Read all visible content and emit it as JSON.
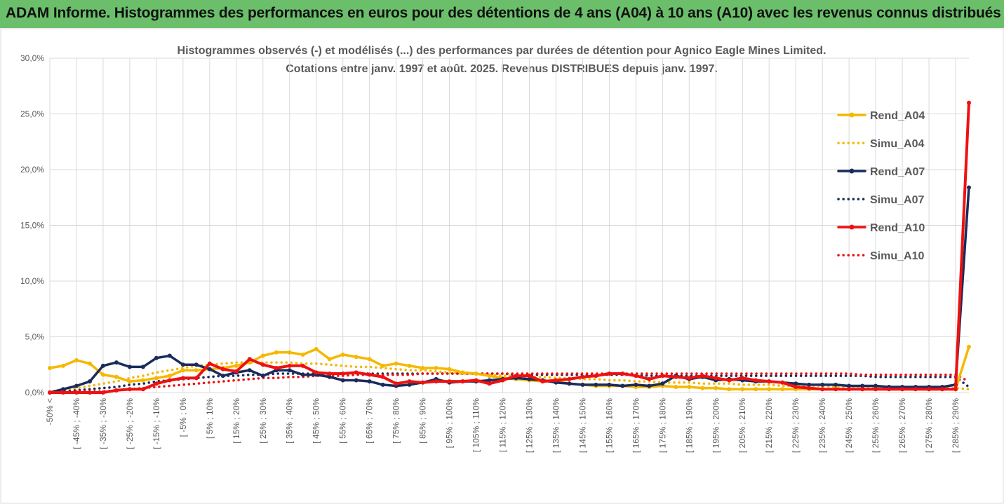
{
  "header": {
    "title": "ADAM Informe. Histogrammes des performances en euros pour des détentions de 4 ans (A04) à 10 ans (A10) avec les revenus connus distribués"
  },
  "chart_data": {
    "type": "line",
    "title_line1": "Histogrammes observés (-) et modélisés (...) des performances par durées de détention pour Agnico Eagle Mines Limited.",
    "title_line2": "Cotations entre janv. 1997 et août. 2025. Revenus DISTRIBUES depuis janv. 1997.",
    "y_ticks": [
      "0,0%",
      "5,0%",
      "10,0%",
      "15,0%",
      "20,0%",
      "25,0%",
      "30,0%"
    ],
    "ylim": [
      0,
      30
    ],
    "x_tick_labels": [
      "-50% <",
      "[ -45% ; -40%",
      "[ -35% ; -30%",
      "[ -25% ; -20%",
      "[ -15% ; -10%",
      "[ -5% ; 0%",
      "[ 5% ; 10%",
      "[ 15% ; 20%",
      "[ 25% ; 30%",
      "[ 35% ; 40%",
      "[ 45% ; 50%",
      "[ 55% ; 60%",
      "[ 65% ; 70%",
      "[ 75% ; 80%",
      "[ 85% ; 90%",
      "[ 95% ; 100%",
      "[ 105% ; 110%",
      "[ 115% ; 120%",
      "[ 125% ; 130%",
      "[ 135% ; 140%",
      "[ 145% ; 150%",
      "[ 155% ; 160%",
      "[ 165% ; 170%",
      "[ 175% ; 180%",
      "[ 185% ; 190%",
      "[ 195% ; 200%",
      "[ 205% ; 210%",
      "[ 215% ; 220%",
      "[ 225% ; 230%",
      "[ 235% ; 240%",
      "[ 245% ; 250%",
      "[ 255% ; 260%",
      "[ 265% ; 270%",
      "[ 275% ; 280%",
      "[ 285% ; 290%"
    ],
    "n_points": 70,
    "grid": true,
    "legend_position": "right",
    "series": [
      {
        "name": "Rend_A04",
        "style": "solid",
        "color": "#f5b800",
        "values": [
          2.2,
          2.4,
          2.9,
          2.6,
          1.6,
          1.4,
          1.0,
          1.1,
          1.3,
          1.5,
          2.0,
          2.0,
          2.1,
          2.2,
          2.4,
          2.7,
          3.3,
          3.6,
          3.6,
          3.4,
          3.9,
          3.0,
          3.4,
          3.2,
          3.0,
          2.4,
          2.6,
          2.4,
          2.2,
          2.2,
          2.1,
          1.8,
          1.7,
          1.5,
          1.3,
          1.2,
          1.1,
          1.0,
          1.0,
          0.8,
          0.7,
          0.6,
          0.6,
          0.6,
          0.5,
          0.5,
          0.6,
          0.5,
          0.5,
          0.4,
          0.4,
          0.3,
          0.3,
          0.3,
          0.3,
          0.3,
          0.3,
          0.3,
          0.3,
          0.3,
          0.3,
          0.3,
          0.3,
          0.3,
          0.3,
          0.3,
          0.3,
          0.3,
          0.3,
          4.1
        ]
      },
      {
        "name": "Simu_A04",
        "style": "dotted",
        "color": "#f5b800",
        "values": [
          0.1,
          0.2,
          0.4,
          0.6,
          0.8,
          1.0,
          1.3,
          1.5,
          1.8,
          2.0,
          2.2,
          2.4,
          2.5,
          2.6,
          2.7,
          2.7,
          2.7,
          2.7,
          2.7,
          2.6,
          2.6,
          2.5,
          2.4,
          2.3,
          2.3,
          2.2,
          2.1,
          2.0,
          2.0,
          1.9,
          1.8,
          1.7,
          1.7,
          1.6,
          1.5,
          1.5,
          1.4,
          1.4,
          1.3,
          1.3,
          1.2,
          1.2,
          1.1,
          1.1,
          1.0,
          1.0,
          0.9,
          0.9,
          0.9,
          0.8,
          0.8,
          0.8,
          0.7,
          0.7,
          0.7,
          0.6,
          0.6,
          0.6,
          0.6,
          0.5,
          0.5,
          0.5,
          0.5,
          0.5,
          0.4,
          0.4,
          0.4,
          0.4,
          0.4,
          0.3
        ]
      },
      {
        "name": "Rend_A07",
        "style": "solid",
        "color": "#1a2b5c",
        "values": [
          0.0,
          0.3,
          0.6,
          1.0,
          2.4,
          2.7,
          2.3,
          2.3,
          3.1,
          3.3,
          2.5,
          2.5,
          2.1,
          1.5,
          1.8,
          2.0,
          1.5,
          2.0,
          2.0,
          1.6,
          1.6,
          1.4,
          1.1,
          1.1,
          1.0,
          0.7,
          0.6,
          0.7,
          0.9,
          1.2,
          0.9,
          1.0,
          1.0,
          1.1,
          1.2,
          1.3,
          1.2,
          1.1,
          0.9,
          0.8,
          0.7,
          0.7,
          0.7,
          0.6,
          0.7,
          0.6,
          0.8,
          1.5,
          1.2,
          1.4,
          1.1,
          1.2,
          1.1,
          1.0,
          1.0,
          0.9,
          0.8,
          0.7,
          0.7,
          0.7,
          0.6,
          0.6,
          0.6,
          0.5,
          0.5,
          0.5,
          0.5,
          0.5,
          0.7,
          18.4
        ]
      },
      {
        "name": "Simu_A07",
        "style": "dotted",
        "color": "#1a2b5c",
        "values": [
          0.0,
          0.1,
          0.2,
          0.3,
          0.4,
          0.5,
          0.7,
          0.8,
          1.0,
          1.1,
          1.2,
          1.3,
          1.4,
          1.5,
          1.5,
          1.6,
          1.6,
          1.7,
          1.7,
          1.7,
          1.7,
          1.7,
          1.7,
          1.7,
          1.7,
          1.7,
          1.7,
          1.7,
          1.7,
          1.7,
          1.7,
          1.7,
          1.7,
          1.7,
          1.7,
          1.6,
          1.6,
          1.6,
          1.6,
          1.6,
          1.6,
          1.6,
          1.6,
          1.6,
          1.6,
          1.5,
          1.5,
          1.5,
          1.5,
          1.5,
          1.5,
          1.5,
          1.5,
          1.5,
          1.5,
          1.5,
          1.5,
          1.5,
          1.5,
          1.5,
          1.5,
          1.5,
          1.4,
          1.4,
          1.4,
          1.4,
          1.4,
          1.4,
          1.4,
          0.5
        ]
      },
      {
        "name": "Rend_A10",
        "style": "solid",
        "color": "#ee1111",
        "values": [
          0.0,
          0.0,
          0.0,
          0.0,
          0.0,
          0.2,
          0.3,
          0.3,
          0.8,
          1.1,
          1.3,
          1.3,
          2.6,
          2.1,
          1.9,
          3.0,
          2.5,
          2.2,
          2.4,
          2.4,
          1.8,
          1.7,
          1.7,
          1.8,
          1.6,
          1.4,
          0.8,
          1.0,
          0.9,
          1.0,
          1.0,
          1.0,
          1.1,
          0.8,
          1.1,
          1.5,
          1.5,
          1.0,
          1.1,
          1.2,
          1.4,
          1.5,
          1.7,
          1.7,
          1.5,
          1.2,
          1.5,
          1.4,
          1.3,
          1.5,
          1.3,
          1.1,
          1.3,
          1.1,
          1.0,
          0.9,
          0.5,
          0.4,
          0.3,
          0.3,
          0.3,
          0.3,
          0.3,
          0.3,
          0.3,
          0.3,
          0.3,
          0.3,
          0.3,
          26.0
        ]
      },
      {
        "name": "Simu_A10",
        "style": "dotted",
        "color": "#ee1111",
        "values": [
          0.0,
          0.0,
          0.1,
          0.1,
          0.1,
          0.2,
          0.3,
          0.4,
          0.5,
          0.6,
          0.7,
          0.8,
          0.9,
          1.0,
          1.1,
          1.2,
          1.3,
          1.3,
          1.4,
          1.4,
          1.5,
          1.5,
          1.5,
          1.6,
          1.6,
          1.6,
          1.6,
          1.6,
          1.7,
          1.7,
          1.7,
          1.7,
          1.7,
          1.7,
          1.7,
          1.7,
          1.7,
          1.7,
          1.7,
          1.7,
          1.7,
          1.7,
          1.7,
          1.7,
          1.7,
          1.7,
          1.7,
          1.7,
          1.7,
          1.7,
          1.7,
          1.7,
          1.7,
          1.7,
          1.7,
          1.7,
          1.7,
          1.7,
          1.7,
          1.7,
          1.7,
          1.6,
          1.6,
          1.6,
          1.6,
          1.6,
          1.6,
          1.6,
          1.6,
          1.0
        ]
      }
    ]
  }
}
